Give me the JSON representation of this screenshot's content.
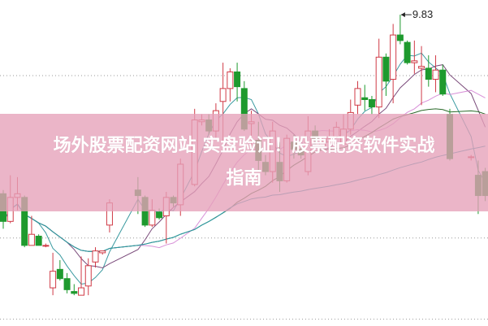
{
  "banner": {
    "line1": "场外股票配资网站 实盘验证！股票配资软件实战",
    "line2": "指南"
  },
  "chart_data": {
    "type": "candlestick",
    "title": "",
    "xlabel": "",
    "ylabel": "",
    "ylim": [
      7.85,
      9.92
    ],
    "grid": "horizontal dotted",
    "high_annotation": "9.83",
    "colors": {
      "up": "#d03a46",
      "down": "#1e9a2e",
      "ma5": "#3a9aa0",
      "ma10": "#7a4a7a",
      "ma20": "#d890d8",
      "ma30": "#2a6a2a",
      "ma60": "#2a9aa8",
      "grid": "#999999"
    },
    "moving_averages": [
      "ma5",
      "ma10",
      "ma20",
      "ma30",
      "ma60"
    ],
    "candles": [
      {
        "o": 8.86,
        "c": 8.71,
        "h": 8.88,
        "l": 8.67
      },
      {
        "o": 8.71,
        "c": 8.84,
        "h": 8.96,
        "l": 8.7
      },
      {
        "o": 8.84,
        "c": 8.86,
        "h": 8.95,
        "l": 8.77
      },
      {
        "o": 8.84,
        "c": 8.58,
        "h": 8.85,
        "l": 8.57
      },
      {
        "o": 8.58,
        "c": 8.64,
        "h": 8.74,
        "l": 8.58
      },
      {
        "o": 8.63,
        "c": 8.58,
        "h": 8.64,
        "l": 8.58
      },
      {
        "o": 8.58,
        "c": 8.58,
        "h": 8.59,
        "l": 8.57
      },
      {
        "o": 8.35,
        "c": 8.44,
        "h": 8.54,
        "l": 8.31
      },
      {
        "o": 8.45,
        "c": 8.4,
        "h": 8.5,
        "l": 8.39
      },
      {
        "o": 8.4,
        "c": 8.34,
        "h": 8.43,
        "l": 8.32
      },
      {
        "o": 8.33,
        "c": 8.32,
        "h": 8.37,
        "l": 8.31
      },
      {
        "o": 8.31,
        "c": 8.35,
        "h": 8.52,
        "l": 8.31
      },
      {
        "o": 8.36,
        "c": 8.47,
        "h": 8.51,
        "l": 8.31
      },
      {
        "o": 8.49,
        "c": 8.55,
        "h": 8.57,
        "l": 8.46
      },
      {
        "o": 8.54,
        "c": 8.55,
        "h": 8.55,
        "l": 8.53
      },
      {
        "o": 8.69,
        "c": 8.81,
        "h": 8.83,
        "l": 8.65
      },
      null,
      null,
      null,
      {
        "o": 8.88,
        "c": 8.85,
        "h": 8.95,
        "l": 8.75
      },
      {
        "o": 8.84,
        "c": 8.69,
        "h": 8.85,
        "l": 8.68
      },
      {
        "o": 8.69,
        "c": 8.77,
        "h": 8.83,
        "l": 8.68
      },
      {
        "o": 8.76,
        "c": 8.73,
        "h": 8.78,
        "l": 8.72
      },
      {
        "o": 8.74,
        "c": 8.84,
        "h": 8.87,
        "l": 8.59
      },
      {
        "o": 8.84,
        "c": 8.81,
        "h": 8.85,
        "l": 8.79
      },
      {
        "o": 8.8,
        "c": 9.02,
        "h": 9.05,
        "l": 8.74
      },
      null,
      {
        "o": 8.91,
        "c": 9.26,
        "h": 9.32,
        "l": 8.9
      },
      {
        "o": 9.25,
        "c": 9.26,
        "h": 9.29,
        "l": 9.23
      },
      {
        "o": 9.26,
        "c": 9.2,
        "h": 9.29,
        "l": 9.18
      },
      {
        "o": 9.2,
        "c": 9.31,
        "h": 9.35,
        "l": 9.16
      },
      {
        "o": 9.36,
        "c": 9.43,
        "h": 9.57,
        "l": 9.14
      },
      {
        "o": 9.43,
        "c": 9.52,
        "h": 9.54,
        "l": 9.36
      },
      {
        "o": 9.52,
        "c": 9.44,
        "h": 9.57,
        "l": 9.36
      },
      {
        "o": 9.43,
        "c": 9.21,
        "h": 9.47,
        "l": 9.2
      },
      {
        "o": 9.24,
        "c": 9.25,
        "h": 9.31,
        "l": 9.12
      },
      {
        "o": 9.15,
        "c": 9.04,
        "h": 9.25,
        "l": 8.98
      },
      {
        "o": 9.03,
        "c": 8.98,
        "h": 9.07,
        "l": 8.96
      },
      {
        "o": 8.98,
        "c": 9.2,
        "h": 9.25,
        "l": 8.92
      },
      {
        "o": 9.03,
        "c": 8.93,
        "h": 9.14,
        "l": 8.87
      },
      {
        "o": 8.93,
        "c": 9.16,
        "h": 9.18,
        "l": 8.92
      },
      {
        "o": 9.14,
        "c": 9.1,
        "h": 9.18,
        "l": 9.05
      },
      {
        "o": 9.1,
        "c": 9.07,
        "h": 9.13,
        "l": 9.05
      },
      {
        "o": 8.98,
        "c": 9.2,
        "h": 9.28,
        "l": 8.96
      },
      {
        "o": 9.2,
        "c": 9.15,
        "h": 9.23,
        "l": 9.12
      },
      {
        "o": 9.12,
        "c": 9.14,
        "h": 9.16,
        "l": 9.1
      },
      {
        "o": 9.14,
        "c": 9.16,
        "h": 9.21,
        "l": 9.13
      },
      {
        "o": 9.17,
        "c": 9.22,
        "h": 9.25,
        "l": 9.16
      },
      {
        "o": 9.13,
        "c": 9.21,
        "h": 9.29,
        "l": 9.12
      },
      {
        "o": 9.21,
        "c": 9.3,
        "h": 9.37,
        "l": 9.18
      },
      {
        "o": 9.34,
        "c": 9.43,
        "h": 9.47,
        "l": 9.29
      },
      {
        "o": 9.38,
        "c": 9.37,
        "h": 9.45,
        "l": 9.31
      },
      {
        "o": 9.37,
        "c": 9.33,
        "h": 9.39,
        "l": 9.29
      },
      {
        "o": 9.33,
        "c": 9.6,
        "h": 9.7,
        "l": 9.27
      },
      {
        "o": 9.6,
        "c": 9.47,
        "h": 9.62,
        "l": 9.39
      },
      {
        "o": 9.48,
        "c": 9.72,
        "h": 9.78,
        "l": 9.35
      },
      {
        "o": 9.72,
        "c": 9.69,
        "h": 9.83,
        "l": 9.67
      },
      {
        "o": 9.68,
        "c": 9.57,
        "h": 9.69,
        "l": 9.56
      },
      {
        "o": 9.57,
        "c": 9.58,
        "h": 9.69,
        "l": 9.51
      },
      {
        "o": 9.54,
        "c": 9.55,
        "h": 9.66,
        "l": 9.34
      },
      {
        "o": 9.54,
        "c": 9.48,
        "h": 9.61,
        "l": 9.44
      },
      {
        "o": 9.48,
        "c": 9.53,
        "h": 9.61,
        "l": 9.41
      },
      {
        "o": 9.53,
        "c": 9.4,
        "h": 9.56,
        "l": 9.39
      },
      {
        "o": 9.29,
        "c": 9.05,
        "h": 9.32,
        "l": 9.04
      },
      null,
      null,
      {
        "o": 9.06,
        "c": 9.06,
        "h": 9.07,
        "l": 9.04
      },
      {
        "o": 8.96,
        "c": 8.85,
        "h": 9.04,
        "l": 8.75
      },
      {
        "o": 8.98,
        "c": 8.85,
        "h": 9.0,
        "l": 8.82
      }
    ]
  }
}
